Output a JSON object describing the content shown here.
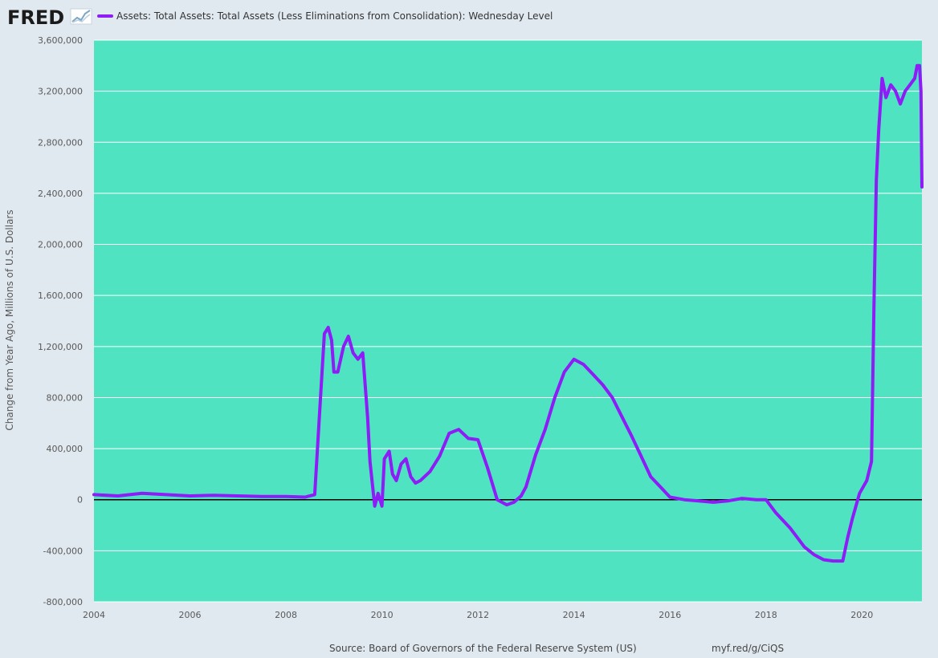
{
  "logo": {
    "text": "FRED"
  },
  "legend": {
    "label": "Assets: Total Assets: Total Assets (Less Eliminations from Consolidation): Wednesday Level"
  },
  "footer": {
    "source": "Source: Board of Governors of the Federal Reserve System (US)",
    "url": "myf.red/g/CiQS"
  },
  "colors": {
    "background": "#e1e9f0",
    "plot_background": "#50e3c2",
    "series": "#8e1cf7",
    "zero_line": "#000000",
    "grid": "#ffffff"
  },
  "chart_data": {
    "type": "line",
    "title": "",
    "xlabel": "",
    "ylabel": "Change from Year Ago, Millions of U.S. Dollars",
    "xlim": [
      2004.0,
      2021.25
    ],
    "ylim": [
      -800000,
      3600000
    ],
    "x_ticks": [
      "2004",
      "2006",
      "2008",
      "2010",
      "2012",
      "2014",
      "2016",
      "2018",
      "2020"
    ],
    "y_ticks": [
      "-800,000",
      "-400,000",
      "0",
      "400,000",
      "800,000",
      "1,200,000",
      "1,600,000",
      "2,000,000",
      "2,400,000",
      "2,800,000",
      "3,200,000",
      "3,600,000"
    ],
    "grid": true,
    "legend_position": "top-left",
    "series": [
      {
        "name": "Assets: Total Assets: Total Assets (Less Eliminations from Consolidation): Wednesday Level",
        "x": [
          2004.0,
          2004.5,
          2005.0,
          2005.5,
          2006.0,
          2006.5,
          2007.0,
          2007.5,
          2008.0,
          2008.4,
          2008.6,
          2008.72,
          2008.8,
          2008.88,
          2008.95,
          2009.0,
          2009.08,
          2009.2,
          2009.3,
          2009.4,
          2009.5,
          2009.6,
          2009.7,
          2009.75,
          2009.85,
          2009.92,
          2010.0,
          2010.05,
          2010.15,
          2010.22,
          2010.3,
          2010.4,
          2010.5,
          2010.6,
          2010.7,
          2010.8,
          2011.0,
          2011.2,
          2011.4,
          2011.6,
          2011.8,
          2012.0,
          2012.2,
          2012.4,
          2012.6,
          2012.75,
          2012.9,
          2013.0,
          2013.2,
          2013.4,
          2013.6,
          2013.8,
          2014.0,
          2014.2,
          2014.4,
          2014.6,
          2014.8,
          2015.0,
          2015.2,
          2015.4,
          2015.6,
          2015.8,
          2016.0,
          2016.3,
          2016.6,
          2016.9,
          2017.2,
          2017.5,
          2017.8,
          2018.0,
          2018.2,
          2018.5,
          2018.8,
          2019.0,
          2019.2,
          2019.4,
          2019.6,
          2019.7,
          2019.8,
          2019.95,
          2020.1,
          2020.2,
          2020.25,
          2020.3,
          2020.35,
          2020.42,
          2020.5,
          2020.6,
          2020.7,
          2020.8,
          2020.9,
          2021.0,
          2021.1,
          2021.15,
          2021.2,
          2021.23,
          2021.25
        ],
        "y": [
          40000,
          30000,
          50000,
          40000,
          30000,
          35000,
          30000,
          25000,
          25000,
          20000,
          40000,
          800000,
          1300000,
          1350000,
          1250000,
          1000000,
          1000000,
          1200000,
          1280000,
          1150000,
          1100000,
          1150000,
          650000,
          300000,
          -50000,
          50000,
          -50000,
          320000,
          380000,
          200000,
          150000,
          280000,
          320000,
          180000,
          130000,
          150000,
          220000,
          340000,
          520000,
          550000,
          480000,
          470000,
          250000,
          0,
          -40000,
          -20000,
          30000,
          100000,
          350000,
          550000,
          800000,
          1000000,
          1100000,
          1060000,
          980000,
          900000,
          800000,
          650000,
          500000,
          340000,
          180000,
          100000,
          20000,
          0,
          -10000,
          -20000,
          -10000,
          10000,
          0,
          0,
          -100000,
          -220000,
          -370000,
          -430000,
          -470000,
          -480000,
          -480000,
          -300000,
          -150000,
          50000,
          150000,
          300000,
          1500000,
          2500000,
          2900000,
          3300000,
          3150000,
          3250000,
          3200000,
          3100000,
          3200000,
          3250000,
          3300000,
          3400000,
          3400000,
          3200000,
          2450000
        ]
      }
    ]
  }
}
